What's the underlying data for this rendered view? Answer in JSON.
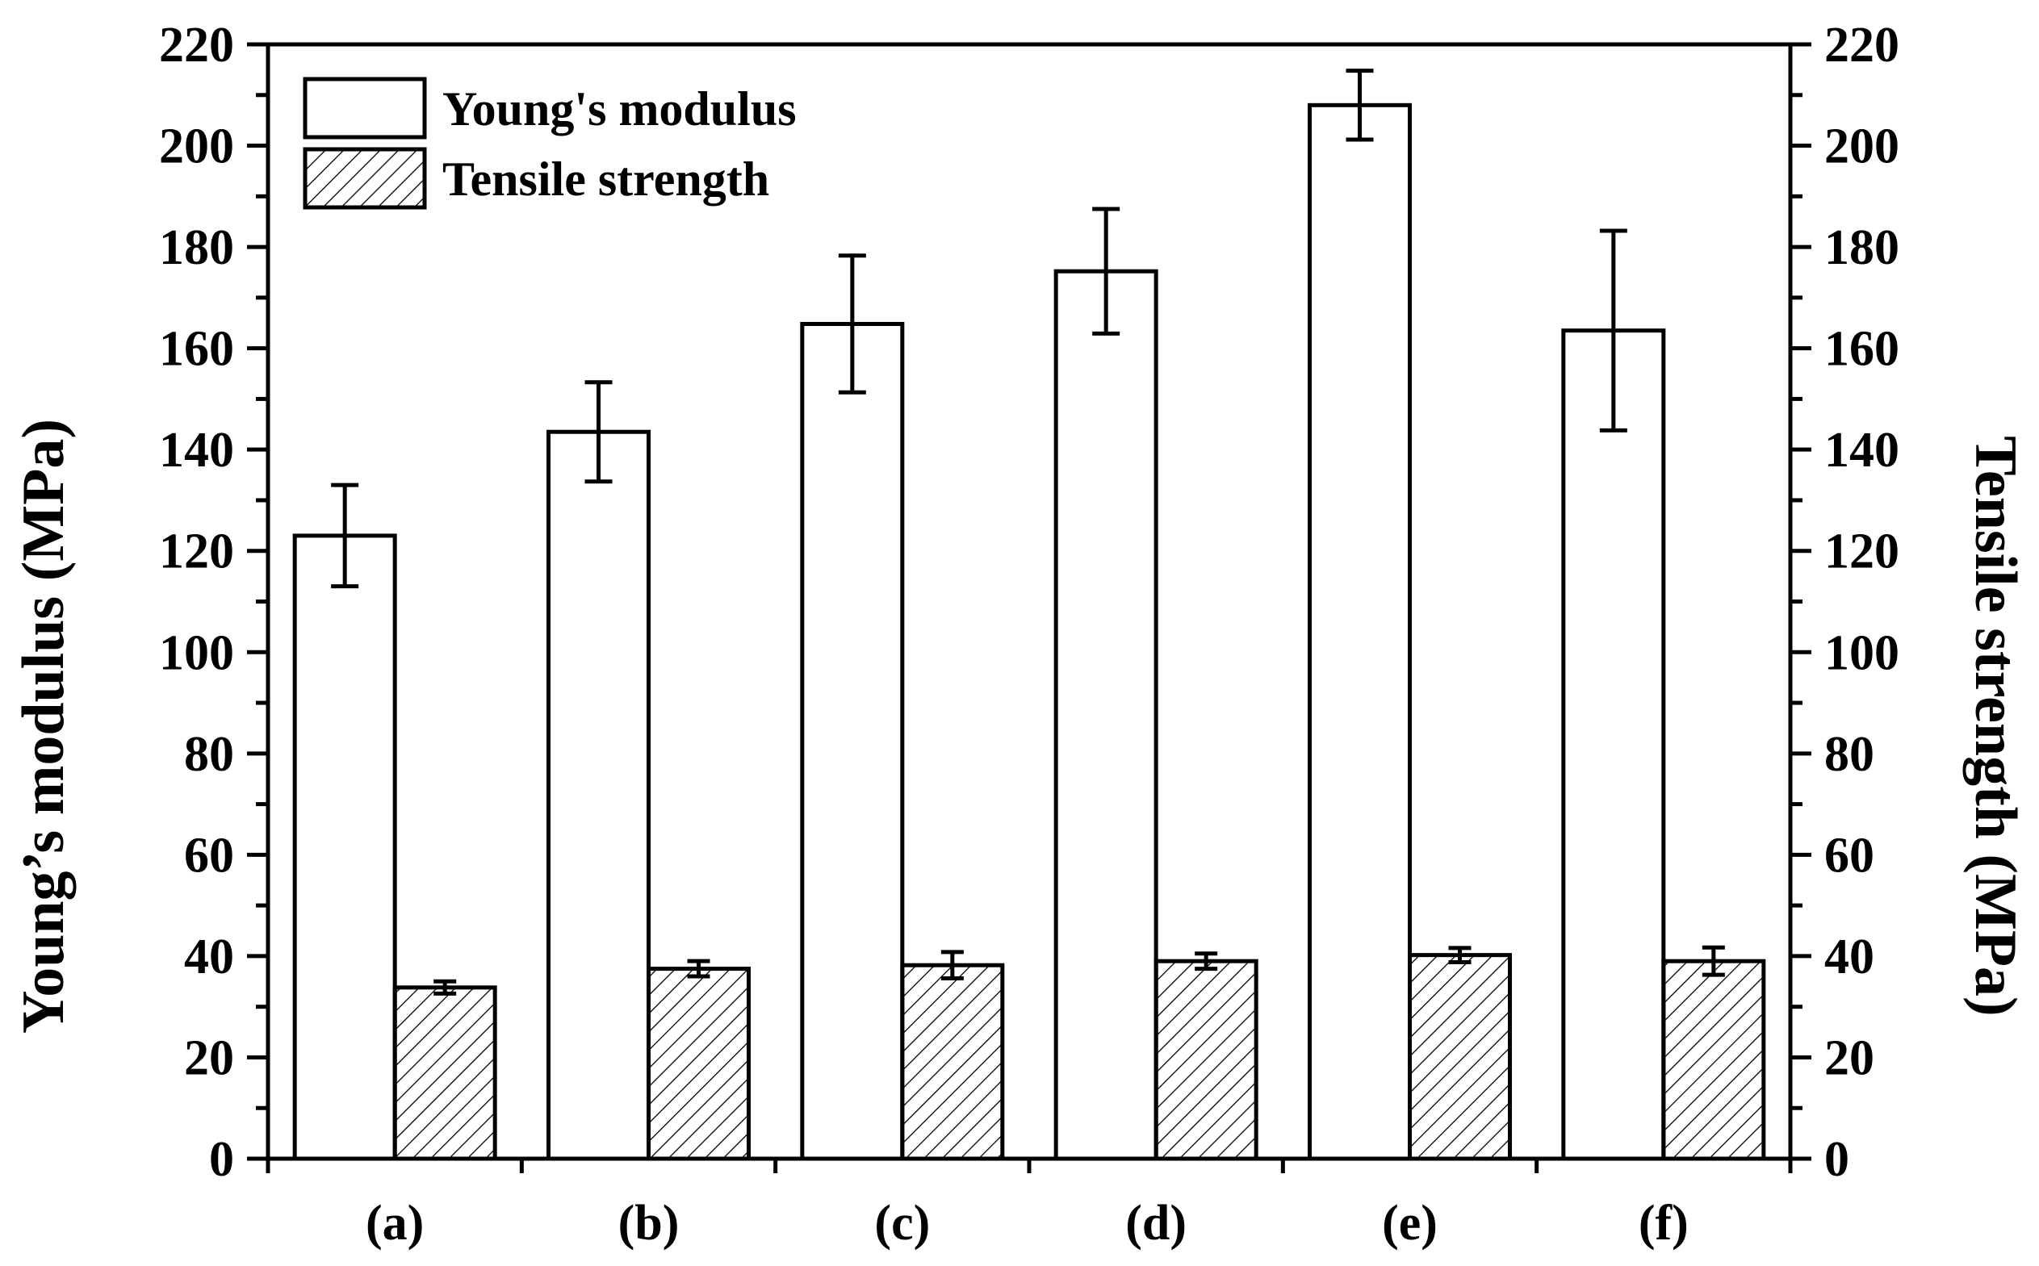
{
  "chart_data": {
    "type": "bar",
    "categories": [
      "(a)",
      "(b)",
      "(c)",
      "(d)",
      "(e)",
      "(f)"
    ],
    "series": [
      {
        "name": "Young's modulus",
        "values": [
          123,
          143.5,
          164.8,
          175.2,
          208,
          163.5
        ],
        "errors": [
          10,
          9.8,
          13.5,
          12.3,
          6.8,
          19.7
        ],
        "fill": "white"
      },
      {
        "name": "Tensile strength",
        "values": [
          33.8,
          37.5,
          38.2,
          39,
          40.2,
          39
        ],
        "errors": [
          1.2,
          1.5,
          2.6,
          1.5,
          1.4,
          2.7
        ],
        "fill": "hatch"
      }
    ],
    "ylabel": "Young’s modulus (MPa)",
    "y2label": "Tensile strength (MPa)",
    "ylim": [
      0,
      220
    ],
    "y2lim": [
      0,
      220
    ],
    "yticks": [
      "0",
      "20",
      "40",
      "60",
      "80",
      "100",
      "120",
      "140",
      "160",
      "180",
      "200",
      "220"
    ],
    "legend": "top-left"
  },
  "colors": {
    "axis": "#000000",
    "bar_fill": "#ffffff",
    "hatch": "#000000"
  }
}
